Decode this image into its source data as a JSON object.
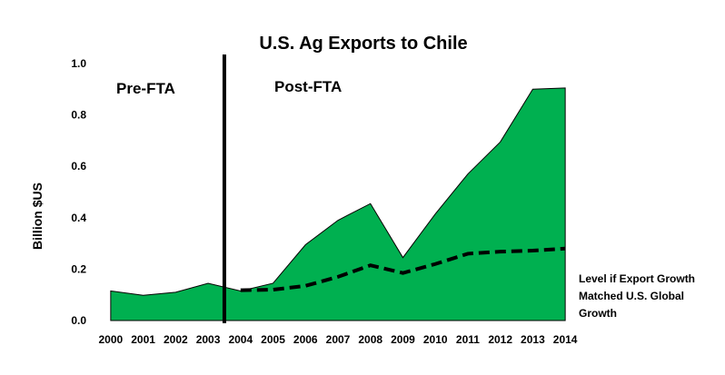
{
  "chart_data": {
    "type": "area",
    "title": "U.S. Ag Exports to Chile",
    "xlabel": "",
    "ylabel": "Billion $US",
    "ylim": [
      0,
      1.0
    ],
    "yticks": [
      "0.0",
      "0.2",
      "0.4",
      "0.6",
      "0.8",
      "1.0"
    ],
    "x": [
      "2000",
      "2001",
      "2002",
      "2003",
      "2004",
      "2005",
      "2006",
      "2007",
      "2008",
      "2009",
      "2010",
      "2011",
      "2012",
      "2013",
      "2014"
    ],
    "series": [
      {
        "values": [
          0.115,
          0.098,
          0.11,
          0.145,
          0.115,
          0.145,
          0.295,
          0.39,
          0.455,
          0.245,
          0.415,
          0.57,
          0.695,
          0.9,
          0.905
        ],
        "color": "#00b050",
        "style": "filled-area"
      },
      {
        "name": "Level if Export Growth Matched U.S. Global Growth",
        "name_lines": [
          "Level if Export Growth",
          "Matched U.S. Global",
          "Growth"
        ],
        "start_index": 4,
        "values": [
          null,
          null,
          null,
          null,
          0.118,
          0.12,
          0.135,
          0.17,
          0.215,
          0.185,
          0.22,
          0.26,
          0.268,
          0.272,
          0.28
        ],
        "color": "#000000",
        "style": "dashed-line"
      }
    ],
    "annotations": {
      "pre_label": "Pre-FTA",
      "post_label": "Post-FTA",
      "divider_between": [
        "2003",
        "2004"
      ]
    },
    "grid": false,
    "legend": "right-bottom"
  }
}
